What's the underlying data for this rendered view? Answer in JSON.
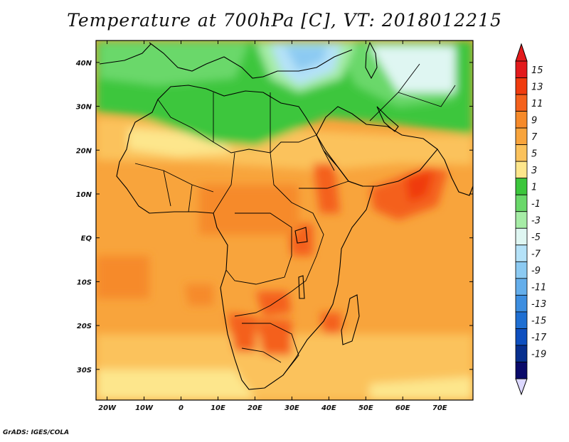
{
  "title": "Temperature at 700hPa [C], VT: 2018012215",
  "credit": "GrADS: IGES/COLA",
  "map": {
    "region": "Africa and Arabian Peninsula",
    "variable": "Temperature at 700hPa",
    "units": "C",
    "valid_time": "2018012215",
    "lon_range": [
      -23,
      79
    ],
    "lat_range": [
      -37,
      45
    ],
    "lon_ticks": [
      "20W",
      "10W",
      "0",
      "10E",
      "20E",
      "30E",
      "40E",
      "50E",
      "60E",
      "70E"
    ],
    "lon_tick_values": [
      -20,
      -10,
      0,
      10,
      20,
      30,
      40,
      50,
      60,
      70
    ],
    "lat_ticks": [
      "40N",
      "30N",
      "20N",
      "10N",
      "EQ",
      "10S",
      "20S",
      "30S"
    ],
    "lat_tick_values": [
      40,
      30,
      20,
      10,
      0,
      -10,
      -20,
      -30
    ]
  },
  "colorbar": {
    "labels": [
      "15",
      "13",
      "11",
      "9",
      "7",
      "5",
      "3",
      "1",
      "-1",
      "-3",
      "-5",
      "-7",
      "-9",
      "-11",
      "-13",
      "-15",
      "-17",
      "-19"
    ],
    "colors": [
      "#e31a1c",
      "#f03b0e",
      "#f4611c",
      "#f68a2a",
      "#f8a43c",
      "#fbc25c",
      "#fde68c",
      "#3cc63c",
      "#6ad86a",
      "#a6eca6",
      "#dff6f2",
      "#b5e2f8",
      "#8ccaf2",
      "#64aeeb",
      "#3d8ee0",
      "#1f6fd2",
      "#0e4fbf",
      "#082f8e",
      "#0a0a6a"
    ],
    "top_arrow_color": "#e31a1c",
    "bottom_arrow_color": "#dcd8ff"
  }
}
